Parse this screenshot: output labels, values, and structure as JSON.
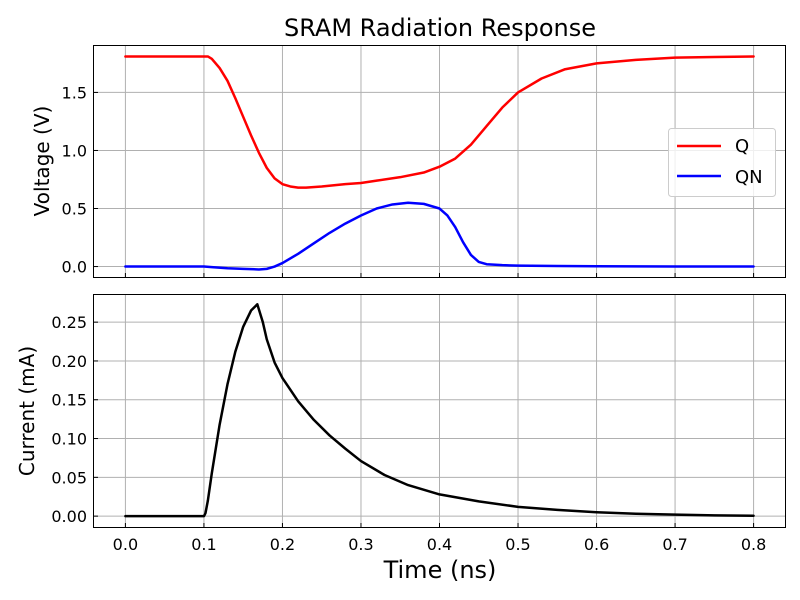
{
  "chart_data": [
    {
      "type": "line",
      "title": "SRAM Radiation Response",
      "xlabel": "",
      "ylabel": "Voltage (V)",
      "xlim": [
        -0.04,
        0.84
      ],
      "ylim": [
        -0.09,
        1.9
      ],
      "xticks": [
        0.0,
        0.1,
        0.2,
        0.3,
        0.4,
        0.5,
        0.6,
        0.7,
        0.8
      ],
      "yticks": [
        0.0,
        0.5,
        1.0,
        1.5
      ],
      "ytick_labels": [
        "0.0",
        "0.5",
        "1.0",
        "1.5"
      ],
      "grid": true,
      "legend_position": "center-right",
      "series": [
        {
          "name": "Q",
          "color": "#ff0000",
          "x": [
            0.0,
            0.1,
            0.105,
            0.11,
            0.12,
            0.13,
            0.14,
            0.15,
            0.16,
            0.17,
            0.18,
            0.19,
            0.2,
            0.21,
            0.22,
            0.23,
            0.25,
            0.28,
            0.3,
            0.32,
            0.35,
            0.38,
            0.4,
            0.42,
            0.44,
            0.46,
            0.48,
            0.5,
            0.53,
            0.56,
            0.6,
            0.65,
            0.7,
            0.75,
            0.8
          ],
          "y": [
            1.81,
            1.81,
            1.81,
            1.79,
            1.71,
            1.6,
            1.45,
            1.29,
            1.13,
            0.98,
            0.85,
            0.76,
            0.71,
            0.69,
            0.68,
            0.68,
            0.69,
            0.71,
            0.72,
            0.74,
            0.77,
            0.81,
            0.86,
            0.93,
            1.05,
            1.21,
            1.37,
            1.5,
            1.62,
            1.7,
            1.75,
            1.78,
            1.8,
            1.805,
            1.81
          ]
        },
        {
          "name": "QN",
          "color": "#0000ff",
          "x": [
            0.0,
            0.1,
            0.11,
            0.13,
            0.15,
            0.17,
            0.18,
            0.19,
            0.2,
            0.22,
            0.24,
            0.26,
            0.28,
            0.3,
            0.32,
            0.34,
            0.36,
            0.38,
            0.4,
            0.41,
            0.42,
            0.43,
            0.44,
            0.45,
            0.46,
            0.48,
            0.5,
            0.55,
            0.6,
            0.7,
            0.8
          ],
          "y": [
            0.0,
            0.0,
            -0.005,
            -0.015,
            -0.02,
            -0.025,
            -0.02,
            0.0,
            0.03,
            0.11,
            0.2,
            0.29,
            0.37,
            0.44,
            0.5,
            0.535,
            0.55,
            0.54,
            0.5,
            0.44,
            0.34,
            0.21,
            0.1,
            0.04,
            0.02,
            0.012,
            0.008,
            0.005,
            0.003,
            0.001,
            0.0
          ]
        }
      ]
    },
    {
      "type": "line",
      "title": "",
      "xlabel": "Time (ns)",
      "ylabel": "Current (mA)",
      "xlim": [
        -0.04,
        0.84
      ],
      "ylim": [
        -0.014,
        0.285
      ],
      "xticks": [
        0.0,
        0.1,
        0.2,
        0.3,
        0.4,
        0.5,
        0.6,
        0.7,
        0.8
      ],
      "xtick_labels": [
        "0.0",
        "0.1",
        "0.2",
        "0.3",
        "0.4",
        "0.5",
        "0.6",
        "0.7",
        "0.8"
      ],
      "yticks": [
        0.0,
        0.05,
        0.1,
        0.15,
        0.2,
        0.25
      ],
      "ytick_labels": [
        "0.00",
        "0.05",
        "0.10",
        "0.15",
        "0.20",
        "0.25"
      ],
      "grid": true,
      "series": [
        {
          "color": "#000000",
          "x": [
            0.0,
            0.1,
            0.102,
            0.105,
            0.11,
            0.12,
            0.13,
            0.14,
            0.15,
            0.16,
            0.168,
            0.175,
            0.18,
            0.19,
            0.2,
            0.22,
            0.24,
            0.26,
            0.28,
            0.3,
            0.33,
            0.36,
            0.4,
            0.45,
            0.5,
            0.55,
            0.6,
            0.65,
            0.7,
            0.75,
            0.8
          ],
          "y": [
            0.0,
            0.0,
            0.004,
            0.02,
            0.055,
            0.118,
            0.17,
            0.212,
            0.244,
            0.265,
            0.273,
            0.25,
            0.228,
            0.198,
            0.178,
            0.148,
            0.124,
            0.104,
            0.087,
            0.071,
            0.053,
            0.04,
            0.028,
            0.019,
            0.012,
            0.008,
            0.005,
            0.003,
            0.002,
            0.001,
            0.0005
          ]
        }
      ]
    }
  ]
}
